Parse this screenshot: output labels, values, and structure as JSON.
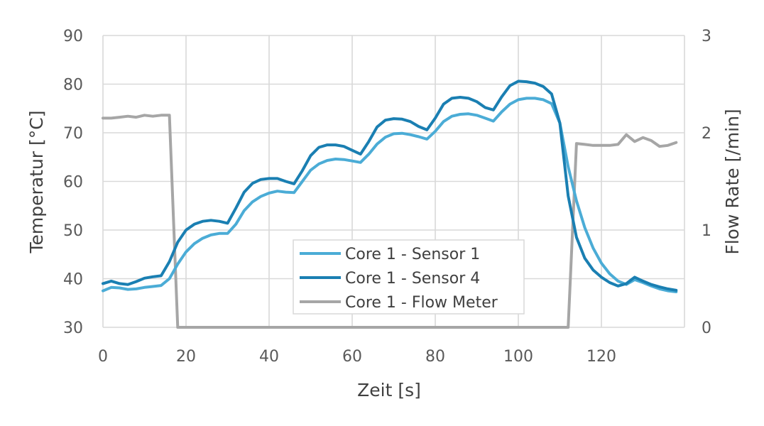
{
  "chart_data": {
    "type": "line",
    "title": "",
    "xlabel": "Zeit [s]",
    "ylabel": "Temperatur [°C]",
    "y2label": "Flow Rate [/min]",
    "xlim": [
      0,
      140
    ],
    "ylim": [
      30,
      90
    ],
    "y2lim": [
      0,
      3
    ],
    "xticks": [
      0,
      20,
      40,
      60,
      80,
      100,
      120
    ],
    "yticks": [
      30,
      40,
      50,
      60,
      70,
      80,
      90
    ],
    "y2ticks": [
      0,
      1,
      2,
      3
    ],
    "grid": true,
    "legend_position": "bottom-center",
    "series": [
      {
        "name": "Core 1 - Sensor 1",
        "axis": "left",
        "color": "#4bacd6",
        "x": [
          0,
          2,
          4,
          6,
          8,
          10,
          12,
          14,
          16,
          18,
          20,
          22,
          24,
          26,
          28,
          30,
          32,
          34,
          36,
          38,
          40,
          42,
          44,
          46,
          48,
          50,
          52,
          54,
          56,
          58,
          60,
          62,
          64,
          66,
          68,
          70,
          72,
          74,
          76,
          78,
          80,
          82,
          84,
          86,
          88,
          90,
          92,
          94,
          96,
          98,
          100,
          102,
          104,
          106,
          108,
          110,
          112,
          114,
          116,
          118,
          120,
          122,
          124,
          126,
          128,
          130,
          132,
          134,
          136,
          138
        ],
        "y": [
          37.5,
          38.2,
          38.1,
          37.8,
          37.9,
          38.2,
          38.4,
          38.6,
          40.0,
          43.0,
          45.5,
          47.2,
          48.3,
          49.0,
          49.3,
          49.3,
          51.2,
          54.0,
          55.8,
          56.9,
          57.6,
          58.0,
          57.8,
          57.7,
          60.0,
          62.3,
          63.6,
          64.3,
          64.6,
          64.5,
          64.2,
          63.9,
          65.6,
          67.7,
          69.1,
          69.8,
          69.9,
          69.6,
          69.2,
          68.7,
          70.3,
          72.3,
          73.4,
          73.8,
          73.9,
          73.6,
          73.0,
          72.4,
          74.3,
          75.9,
          76.8,
          77.1,
          77.1,
          76.8,
          76.0,
          72.0,
          63.0,
          56.0,
          50.5,
          46.3,
          43.2,
          41.0,
          39.5,
          38.8,
          39.8,
          39.2,
          38.5,
          37.9,
          37.5,
          37.3
        ]
      },
      {
        "name": "Core 1 - Sensor 4",
        "axis": "left",
        "color": "#1a7fb2",
        "x": [
          0,
          2,
          4,
          6,
          8,
          10,
          12,
          14,
          16,
          18,
          20,
          22,
          24,
          26,
          28,
          30,
          32,
          34,
          36,
          38,
          40,
          42,
          44,
          46,
          48,
          50,
          52,
          54,
          56,
          58,
          60,
          62,
          64,
          66,
          68,
          70,
          72,
          74,
          76,
          78,
          80,
          82,
          84,
          86,
          88,
          90,
          92,
          94,
          96,
          98,
          100,
          102,
          104,
          106,
          108,
          110,
          112,
          114,
          116,
          118,
          120,
          122,
          124,
          126,
          128,
          130,
          132,
          134,
          136,
          138
        ],
        "y": [
          39.0,
          39.5,
          39.0,
          38.8,
          39.4,
          40.1,
          40.4,
          40.6,
          43.5,
          47.5,
          50.0,
          51.2,
          51.8,
          52.0,
          51.8,
          51.4,
          54.5,
          57.8,
          59.6,
          60.4,
          60.6,
          60.6,
          60.0,
          59.5,
          62.2,
          65.3,
          67.0,
          67.5,
          67.5,
          67.2,
          66.4,
          65.6,
          68.2,
          71.2,
          72.6,
          72.9,
          72.8,
          72.3,
          71.3,
          70.6,
          73.0,
          75.9,
          77.1,
          77.3,
          77.1,
          76.4,
          75.2,
          74.7,
          77.4,
          79.7,
          80.6,
          80.5,
          80.2,
          79.5,
          78.0,
          72.0,
          57.0,
          48.5,
          44.2,
          41.8,
          40.3,
          39.2,
          38.5,
          39.0,
          40.3,
          39.5,
          38.8,
          38.3,
          37.9,
          37.6
        ]
      },
      {
        "name": "Core 1 - Flow Meter",
        "axis": "right",
        "color": "#a6a6a6",
        "x": [
          0,
          2,
          4,
          6,
          8,
          10,
          12,
          14,
          16,
          18,
          20,
          40,
          60,
          80,
          100,
          110,
          112,
          114,
          116,
          118,
          120,
          122,
          124,
          126,
          128,
          130,
          132,
          134,
          136,
          138
        ],
        "y": [
          2.15,
          2.15,
          2.16,
          2.17,
          2.16,
          2.18,
          2.17,
          2.18,
          2.18,
          0.0,
          0.0,
          0.0,
          0.0,
          0.0,
          0.0,
          0.0,
          0.0,
          1.89,
          1.88,
          1.87,
          1.87,
          1.87,
          1.88,
          1.98,
          1.91,
          1.95,
          1.92,
          1.86,
          1.87,
          1.9
        ]
      }
    ]
  }
}
